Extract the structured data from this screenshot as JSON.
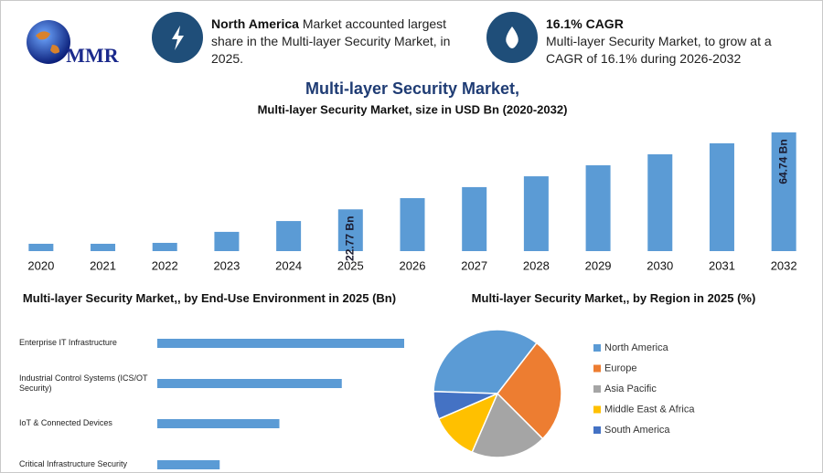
{
  "header": {
    "logo": "MMR",
    "fact1": {
      "bold": "North America",
      "text": "Market accounted largest share in the Multi-layer Security Market, in 2025."
    },
    "fact2": {
      "bold": "16.1% CAGR",
      "text": "Multi-layer Security Market, to grow at a CAGR of 16.1% during 2026-2032"
    }
  },
  "chart_data": [
    {
      "type": "bar",
      "title": "Multi-layer Security Market,",
      "subtitle": "Multi-layer Security Market, size in USD Bn (2020-2032)",
      "categories": [
        "2020",
        "2021",
        "2022",
        "2023",
        "2024",
        "2025",
        "2026",
        "2027",
        "2028",
        "2029",
        "2030",
        "2031",
        "2032"
      ],
      "values": [
        4,
        4,
        4.5,
        10.5,
        16.4,
        22.77,
        28.9,
        34.9,
        40.8,
        46.8,
        52.8,
        58.8,
        64.74
      ],
      "value_labels": [
        null,
        null,
        null,
        null,
        null,
        "22.77 Bn",
        null,
        null,
        null,
        null,
        null,
        null,
        "64.74 Bn"
      ],
      "color": "#5b9bd5"
    },
    {
      "type": "hbar",
      "title": "Multi-layer Security Market,, by End-Use Environment in 2025 (Bn)",
      "categories": [
        "Enterprise IT Infrastructure",
        "Industrial Control Systems (ICS/OT Security)",
        "IoT & Connected Devices",
        "Critical Infrastructure Security"
      ],
      "values": [
        9.1,
        6.8,
        4.5,
        2.3
      ],
      "color": "#5b9bd5"
    },
    {
      "type": "pie",
      "title": "Multi-layer Security Market,, by Region in 2025 (%)",
      "series": [
        {
          "name": "North America",
          "color": "#5b9bd5"
        },
        {
          "name": "Europe",
          "color": "#ed7d31"
        },
        {
          "name": "Asia Pacific",
          "color": "#a5a5a5"
        },
        {
          "name": "Middle East & Africa",
          "color": "#ffc000"
        },
        {
          "name": "South America",
          "color": "#4472c4"
        }
      ],
      "values": [
        35,
        27,
        19,
        12,
        7
      ],
      "legend": "right"
    }
  ]
}
